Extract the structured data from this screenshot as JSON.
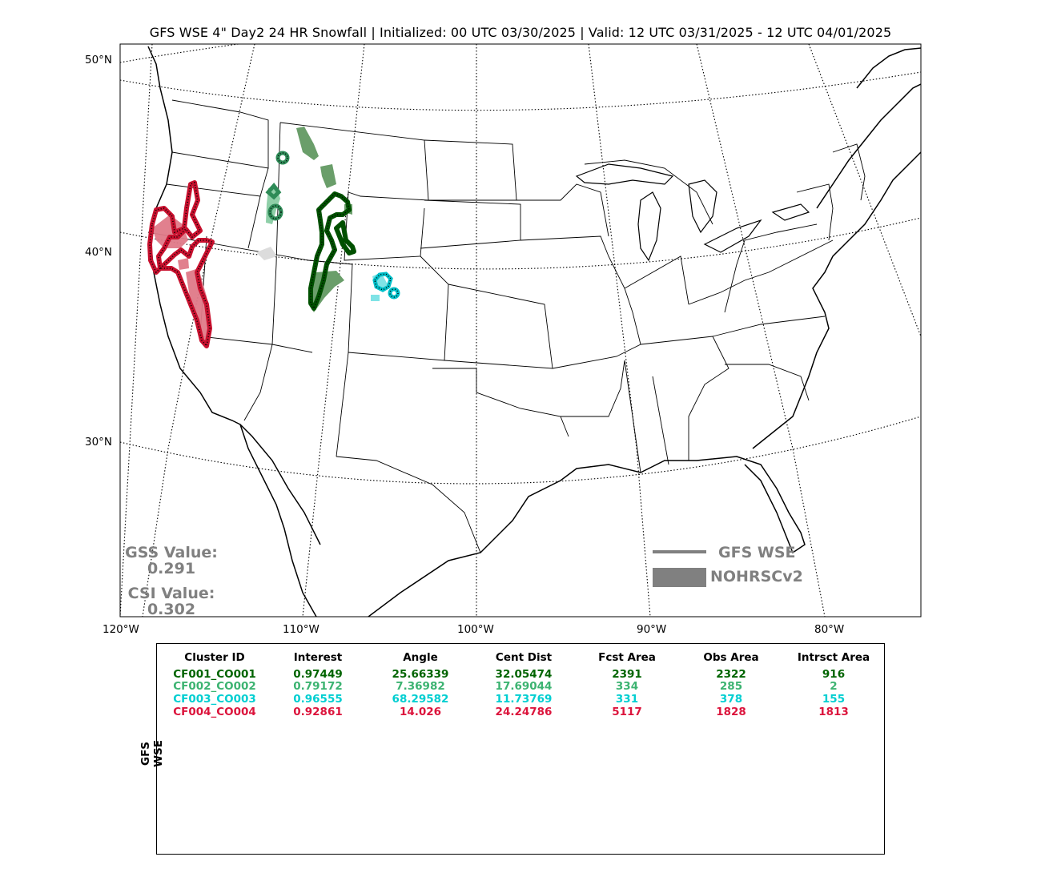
{
  "title": "GFS WSE 4\" Day2 24 HR Snowfall | Initialized: 00 UTC 03/30/2025 | Valid: 12 UTC 03/31/2025 - 12 UTC 04/01/2025",
  "lat_labels": [
    "50°N",
    "40°N",
    "30°N"
  ],
  "lon_labels": [
    "120°W",
    "110°W",
    "100°W",
    "90°W",
    "80°W"
  ],
  "stats": {
    "gss_label": "GSS Value:",
    "gss_value": "0.291",
    "csi_label": "CSI Value:",
    "csi_value": "0.302"
  },
  "legend": {
    "line_label": "GFS WSE",
    "fill_label": "NOHRSCv2",
    "color": "#808080"
  },
  "table": {
    "ylabel": "GFS WSE",
    "headers": [
      "Cluster ID",
      "Interest",
      "Angle",
      "Cent Dist",
      "Fcst Area",
      "Obs Area",
      "Intrsct Area"
    ],
    "rows": [
      {
        "color": "#006400",
        "cells": [
          "CF001_CO001",
          "0.97449",
          "25.66339",
          "32.05474",
          "2391",
          "2322",
          "916"
        ]
      },
      {
        "color": "#3cb371",
        "cells": [
          "CF002_CO002",
          "0.79172",
          "7.36982",
          "17.69044",
          "334",
          "285",
          "2"
        ]
      },
      {
        "color": "#00ced1",
        "cells": [
          "CF003_CO003",
          "0.96555",
          "68.29582",
          "11.73769",
          "331",
          "378",
          "155"
        ]
      },
      {
        "color": "#dc143c",
        "cells": [
          "CF004_CO004",
          "0.92861",
          "14.026",
          "24.24786",
          "5117",
          "1828",
          "1813"
        ]
      }
    ]
  },
  "clusters": [
    {
      "id": "CF001_CO001",
      "outline_color": "#005000",
      "fill_color": "#6a9e6a"
    },
    {
      "id": "CF002_CO002",
      "outline_color": "#2e8b57",
      "fill_color": "#8fcfa8"
    },
    {
      "id": "CF003_CO003",
      "outline_color": "#00bfc8",
      "fill_color": "#7fe3e6"
    },
    {
      "id": "CF004_CO004",
      "outline_color": "#c8102e",
      "fill_color": "#e07a88"
    }
  ]
}
